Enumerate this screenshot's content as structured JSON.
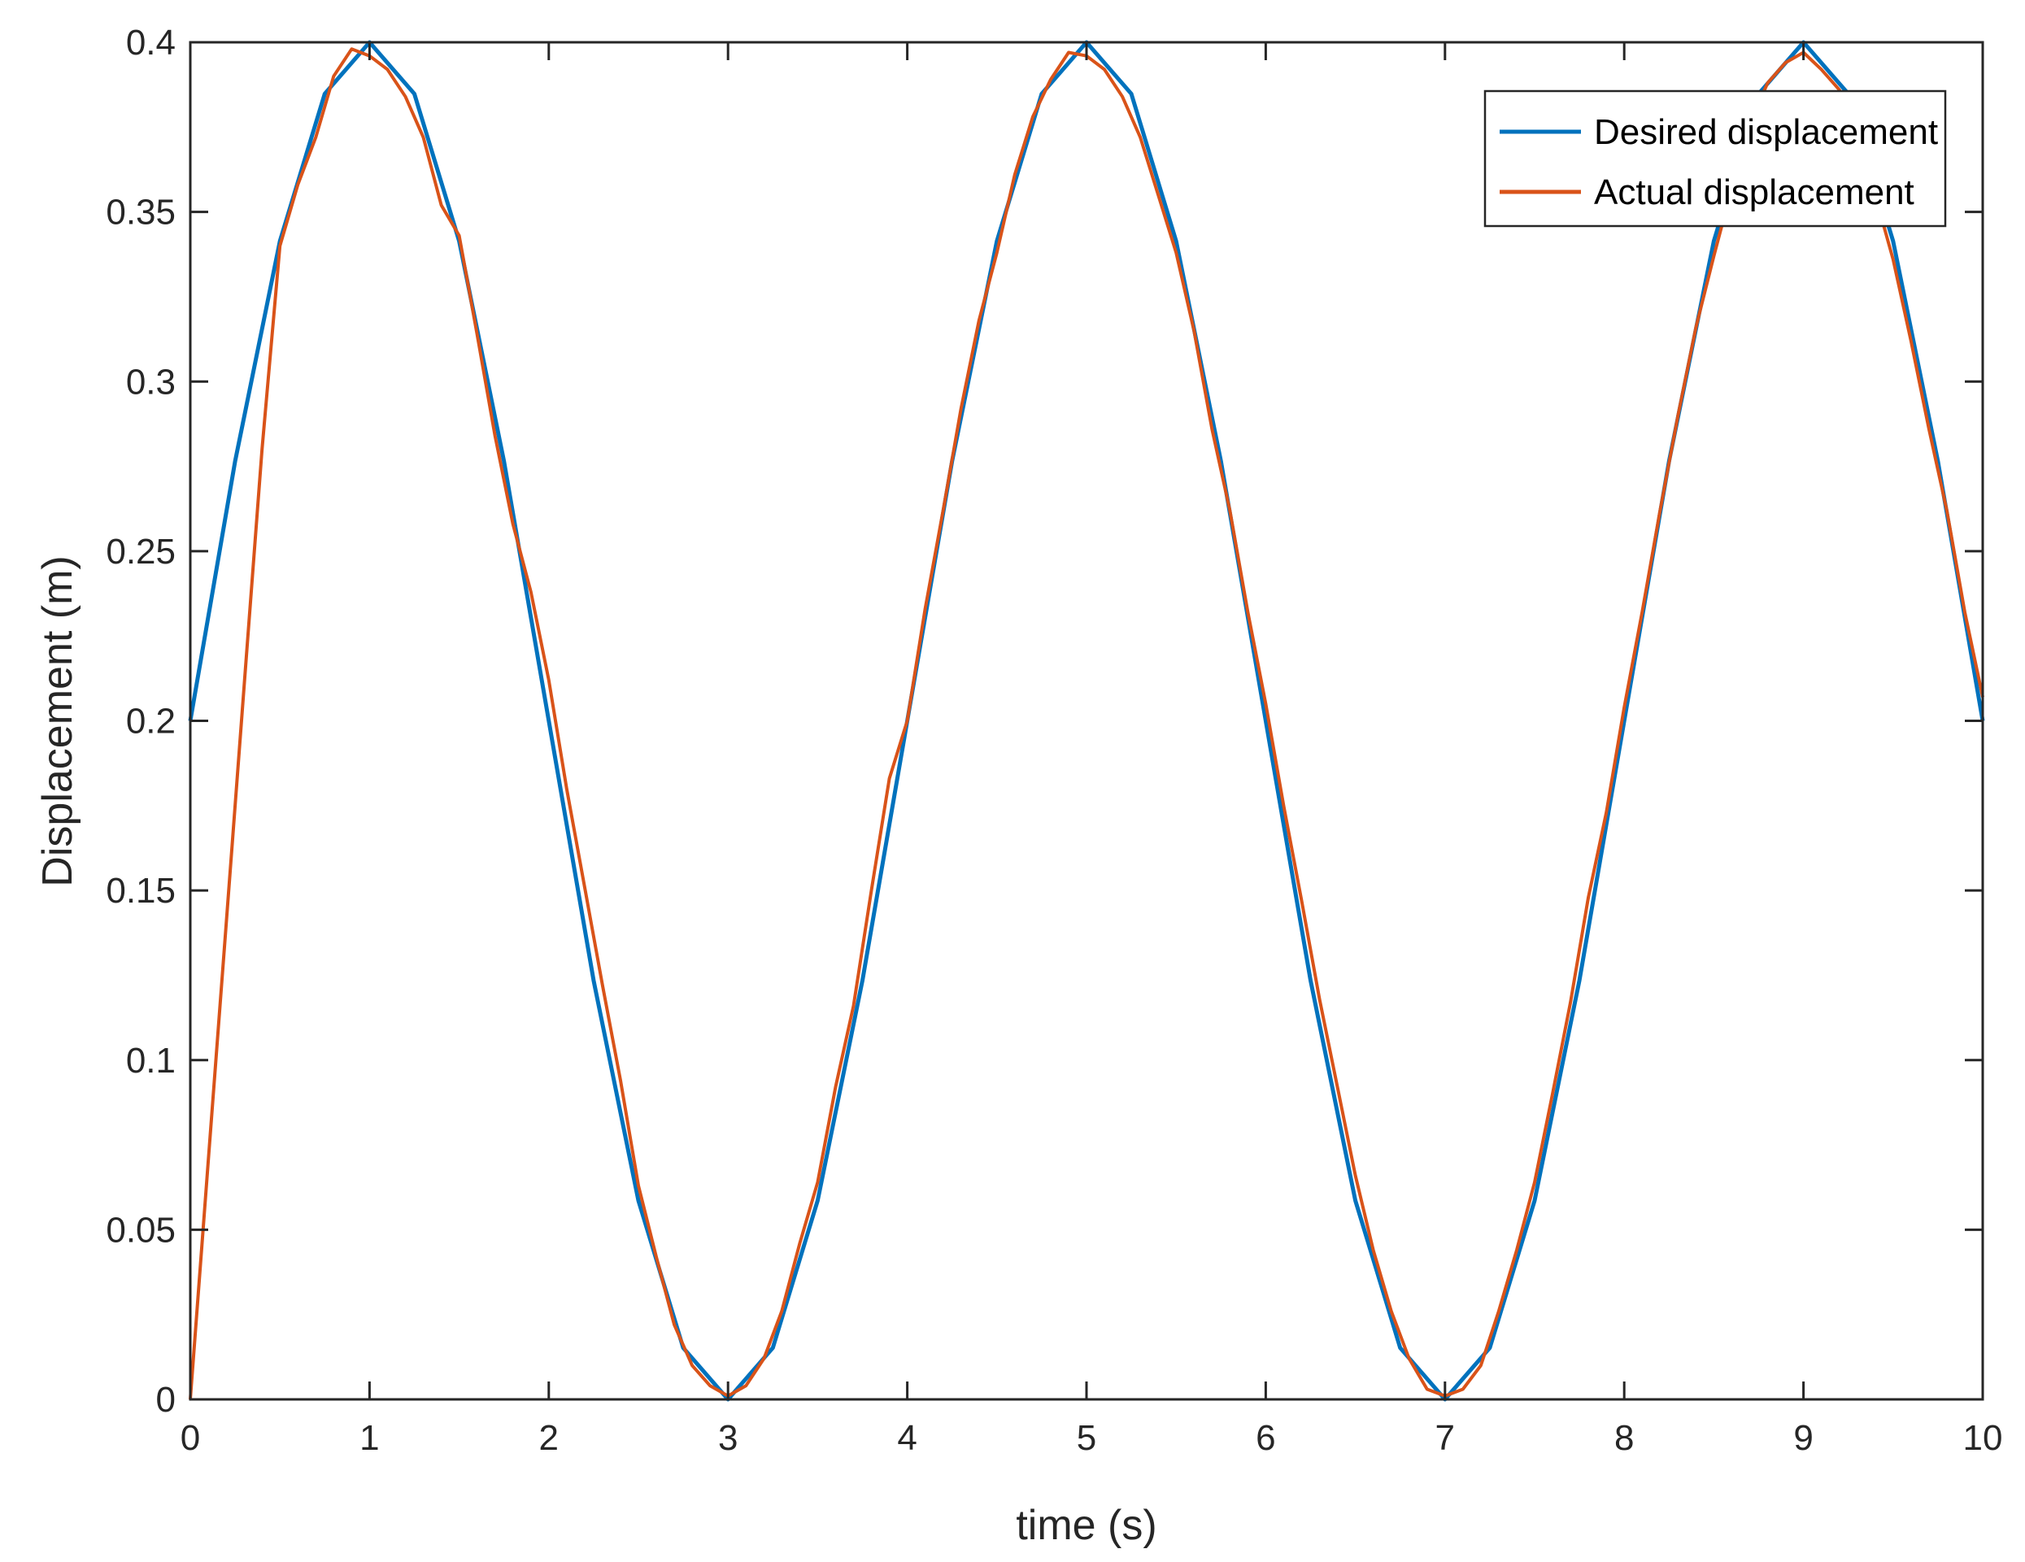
{
  "chart_data": {
    "type": "line",
    "title": "",
    "xlabel": "time (s)",
    "ylabel": "Displacement (m)",
    "xlim": [
      0,
      10
    ],
    "ylim": [
      0,
      0.4
    ],
    "xticks": [
      0,
      1,
      2,
      3,
      4,
      5,
      6,
      7,
      8,
      9,
      10
    ],
    "xtick_labels": [
      "0",
      "1",
      "2",
      "3",
      "4",
      "5",
      "6",
      "7",
      "8",
      "9",
      "10"
    ],
    "yticks": [
      0,
      0.05,
      0.1,
      0.15,
      0.2,
      0.25,
      0.3,
      0.35,
      0.4
    ],
    "ytick_labels": [
      "0",
      "0.05",
      "0.1",
      "0.15",
      "0.2",
      "0.25",
      "0.3",
      "0.35",
      "0.4"
    ],
    "grid": false,
    "legend_position": "top-right",
    "series": [
      {
        "name": "Desired displacement",
        "color": "#0072BD",
        "x": [
          0,
          0.25,
          0.5,
          0.75,
          1,
          1.25,
          1.5,
          1.75,
          2,
          2.25,
          2.5,
          2.75,
          3,
          3.25,
          3.5,
          3.75,
          4,
          4.25,
          4.5,
          4.75,
          5,
          5.25,
          5.5,
          5.75,
          6,
          6.25,
          6.5,
          6.75,
          7,
          7.25,
          7.5,
          7.75,
          8,
          8.25,
          8.5,
          8.75,
          9,
          9.25,
          9.5,
          9.75,
          10
        ],
        "y": [
          0.2,
          0.2765,
          0.3414,
          0.3848,
          0.4,
          0.3848,
          0.3414,
          0.2765,
          0.2,
          0.1235,
          0.0586,
          0.0152,
          0.0,
          0.0152,
          0.0586,
          0.1235,
          0.2,
          0.2765,
          0.3414,
          0.3848,
          0.4,
          0.3848,
          0.3414,
          0.2765,
          0.2,
          0.1235,
          0.0586,
          0.0152,
          0.0,
          0.0152,
          0.0586,
          0.1235,
          0.2,
          0.2765,
          0.3414,
          0.3848,
          0.4,
          0.3848,
          0.3414,
          0.2765,
          0.2
        ]
      },
      {
        "name": "Actual displacement",
        "color": "#D95319",
        "x": [
          0,
          0.1,
          0.2,
          0.3,
          0.4,
          0.5,
          0.6,
          0.7,
          0.8,
          0.9,
          1.0,
          1.1,
          1.2,
          1.3,
          1.4,
          1.5,
          1.6,
          1.7,
          1.8,
          1.9,
          2.0,
          2.1,
          2.2,
          2.3,
          2.4,
          2.5,
          2.6,
          2.7,
          2.8,
          2.9,
          3.0,
          3.1,
          3.2,
          3.3,
          3.4,
          3.5,
          3.6,
          3.7,
          3.8,
          3.9,
          4.0,
          4.1,
          4.2,
          4.3,
          4.4,
          4.5,
          4.6,
          4.7,
          4.8,
          4.9,
          5.0,
          5.1,
          5.2,
          5.3,
          5.4,
          5.5,
          5.6,
          5.7,
          5.8,
          5.9,
          6.0,
          6.1,
          6.2,
          6.3,
          6.4,
          6.5,
          6.6,
          6.7,
          6.8,
          6.9,
          7.0,
          7.1,
          7.2,
          7.3,
          7.4,
          7.5,
          7.6,
          7.7,
          7.8,
          7.9,
          8.0,
          8.1,
          8.2,
          8.3,
          8.4,
          8.5,
          8.6,
          8.7,
          8.8,
          8.9,
          9.0,
          9.1,
          9.2,
          9.3,
          9.4,
          9.5,
          9.6,
          9.7,
          9.8,
          9.9,
          10.0
        ],
        "y": [
          0.0,
          0.07,
          0.14,
          0.21,
          0.28,
          0.34,
          0.358,
          0.372,
          0.39,
          0.398,
          0.396,
          0.392,
          0.384,
          0.372,
          0.352,
          0.343,
          0.314,
          0.284,
          0.258,
          0.238,
          0.212,
          0.18,
          0.151,
          0.122,
          0.094,
          0.063,
          0.042,
          0.022,
          0.01,
          0.004,
          0.001,
          0.004,
          0.012,
          0.026,
          0.046,
          0.064,
          0.092,
          0.116,
          0.15,
          0.183,
          0.2,
          0.233,
          0.262,
          0.292,
          0.318,
          0.338,
          0.361,
          0.378,
          0.389,
          0.397,
          0.396,
          0.392,
          0.384,
          0.372,
          0.355,
          0.338,
          0.315,
          0.286,
          0.262,
          0.232,
          0.205,
          0.175,
          0.147,
          0.118,
          0.092,
          0.066,
          0.044,
          0.026,
          0.012,
          0.003,
          0.001,
          0.003,
          0.01,
          0.026,
          0.044,
          0.064,
          0.09,
          0.117,
          0.148,
          0.173,
          0.204,
          0.232,
          0.262,
          0.29,
          0.316,
          0.337,
          0.357,
          0.376,
          0.388,
          0.394,
          0.397,
          0.392,
          0.386,
          0.373,
          0.355,
          0.336,
          0.312,
          0.286,
          0.262,
          0.232,
          0.207
        ]
      }
    ]
  }
}
